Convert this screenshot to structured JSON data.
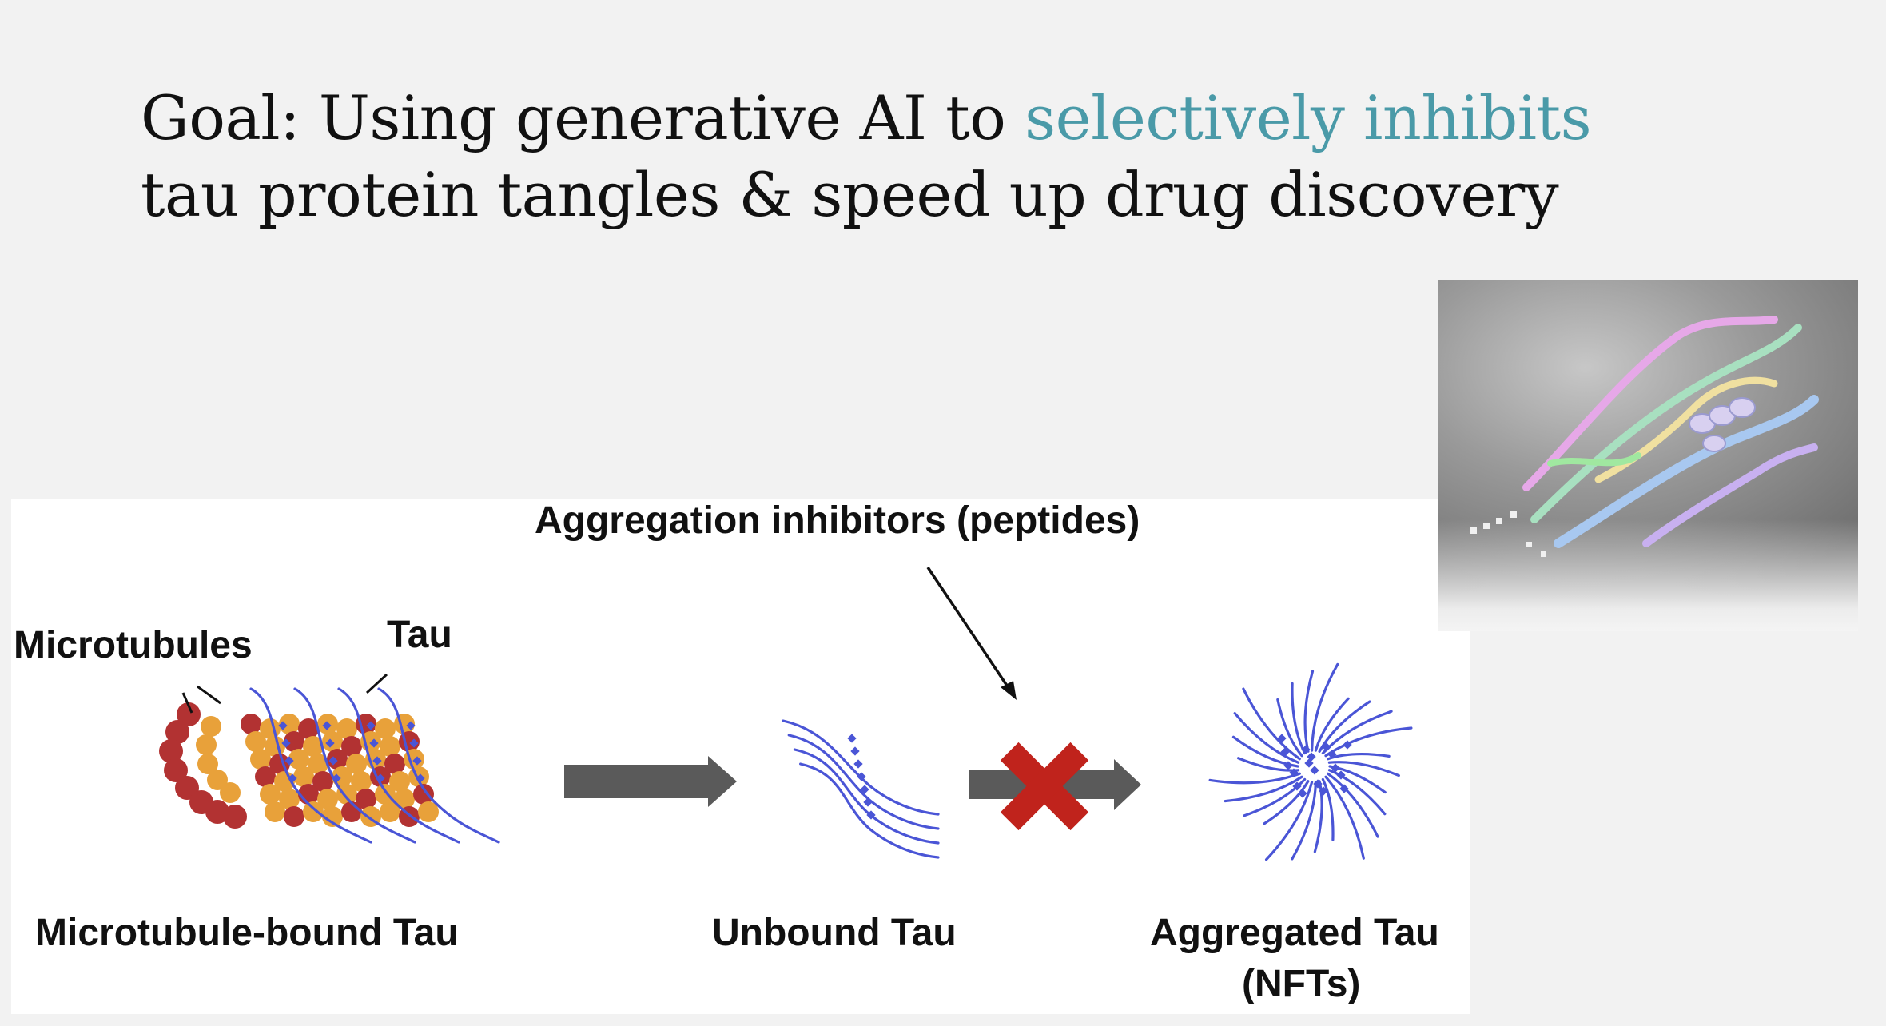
{
  "title": {
    "part1": "Goal: Using generative AI to ",
    "highlight": "selectively inhibits",
    "part2": " tau protein tangles & speed up drug discovery",
    "highlight_color": "#4a9aa8"
  },
  "diagram": {
    "label_inhibitors": "Aggregation inhibitors (peptides)",
    "label_microtubules": "Microtubules",
    "label_tau": "Tau",
    "label_bound": "Microtubule-bound Tau",
    "label_unbound": "Unbound Tau",
    "label_aggregated_1": "Aggregated Tau",
    "label_aggregated_2": "(NFTs)",
    "colors": {
      "tau_strand": "#4a55d6",
      "microtubule_orange": "#e8a13a",
      "microtubule_red": "#b23232",
      "arrow": "#5a5a5a",
      "inhibit_x": "#c0231c"
    }
  },
  "protein_image": {
    "icon": "protein-structure-render"
  }
}
